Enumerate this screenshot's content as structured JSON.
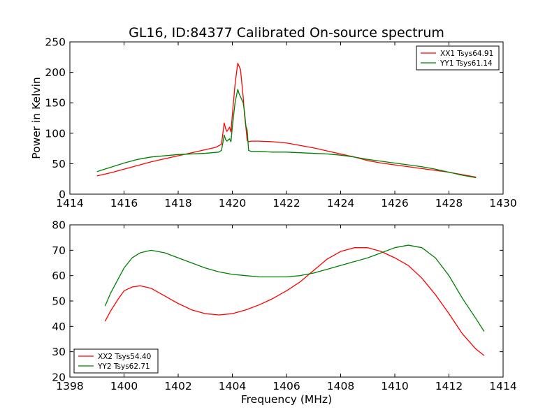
{
  "figure": {
    "title": "GL16, ID:84377 Calibrated On-source spectrum",
    "background": "#ffffff"
  },
  "chart_data": [
    {
      "type": "line",
      "title": "GL16, ID:84377 Calibrated On-source spectrum",
      "xlabel": "",
      "ylabel": "Power in Kelvin",
      "xlim": [
        1414,
        1430
      ],
      "ylim": [
        0,
        250
      ],
      "xticks": [
        "1414",
        "1416",
        "1418",
        "1420",
        "1422",
        "1424",
        "1426",
        "1428",
        "1430"
      ],
      "yticks": [
        "0",
        "50",
        "100",
        "150",
        "200",
        "250"
      ],
      "legend_position": "top-right",
      "grid": false,
      "series": [
        {
          "name": "XX1 Tsys64.91",
          "color": "#ff0000",
          "x": [
            1415.0,
            1415.5,
            1416.0,
            1416.5,
            1417.0,
            1417.5,
            1418.0,
            1418.5,
            1419.0,
            1419.4,
            1419.6,
            1419.7,
            1419.75,
            1419.8,
            1419.9,
            1419.95,
            1420.0,
            1420.1,
            1420.2,
            1420.25,
            1420.3,
            1420.4,
            1420.45,
            1420.5,
            1420.55,
            1420.6,
            1420.7,
            1421.0,
            1421.5,
            1422.0,
            1422.5,
            1423.0,
            1423.5,
            1424.0,
            1424.5,
            1425.0,
            1425.5,
            1426.0,
            1426.5,
            1427.0,
            1427.5,
            1428.0,
            1428.5,
            1429.0
          ],
          "y": [
            30,
            35,
            41,
            47,
            53,
            58,
            63,
            68,
            73,
            77,
            82,
            117,
            108,
            103,
            110,
            102,
            130,
            180,
            215,
            210,
            205,
            160,
            130,
            110,
            88,
            86,
            87,
            87,
            86,
            84,
            80,
            76,
            71,
            66,
            61,
            55,
            51,
            48,
            45,
            42,
            39,
            36,
            32,
            28
          ]
        },
        {
          "name": "YY1 Tsys61.14",
          "color": "#008000",
          "x": [
            1415.0,
            1415.5,
            1416.0,
            1416.5,
            1417.0,
            1417.5,
            1418.0,
            1418.5,
            1419.0,
            1419.5,
            1419.6,
            1419.7,
            1419.75,
            1419.8,
            1419.9,
            1419.95,
            1420.0,
            1420.1,
            1420.2,
            1420.25,
            1420.3,
            1420.4,
            1420.45,
            1420.5,
            1420.55,
            1420.6,
            1420.7,
            1421.0,
            1421.5,
            1422.0,
            1422.5,
            1423.0,
            1423.5,
            1424.0,
            1424.5,
            1425.0,
            1425.5,
            1426.0,
            1426.5,
            1427.0,
            1427.5,
            1428.0,
            1428.5,
            1429.0
          ],
          "y": [
            37,
            44,
            51,
            57,
            61,
            63,
            65,
            66,
            67,
            69,
            72,
            97,
            90,
            87,
            91,
            86,
            110,
            150,
            172,
            165,
            160,
            150,
            135,
            112,
            105,
            72,
            70,
            70,
            69,
            69,
            68,
            67,
            66,
            64,
            61,
            57,
            54,
            51,
            48,
            45,
            41,
            36,
            31,
            27
          ]
        }
      ]
    },
    {
      "type": "line",
      "title": "",
      "xlabel": "Frequency (MHz)",
      "ylabel": "",
      "xlim": [
        1398,
        1414
      ],
      "ylim": [
        20,
        80
      ],
      "xticks": [
        "1398",
        "1400",
        "1402",
        "1404",
        "1406",
        "1408",
        "1410",
        "1412",
        "1414"
      ],
      "yticks": [
        "20",
        "30",
        "40",
        "50",
        "60",
        "70",
        "80"
      ],
      "legend_position": "bottom-left",
      "grid": false,
      "series": [
        {
          "name": "XX2 Tsys54.40",
          "color": "#ff0000",
          "x": [
            1399.3,
            1399.5,
            1399.8,
            1400.0,
            1400.3,
            1400.6,
            1401.0,
            1401.5,
            1402.0,
            1402.5,
            1403.0,
            1403.5,
            1404.0,
            1404.5,
            1405.0,
            1405.5,
            1406.0,
            1406.5,
            1407.0,
            1407.5,
            1408.0,
            1408.5,
            1409.0,
            1409.5,
            1410.0,
            1410.5,
            1411.0,
            1411.5,
            1412.0,
            1412.5,
            1413.0,
            1413.3
          ],
          "y": [
            42,
            46,
            51,
            54,
            55.5,
            56,
            55,
            52,
            49,
            46.5,
            45,
            44.5,
            45,
            46.5,
            48.5,
            51,
            54,
            57.5,
            62,
            66.5,
            69.5,
            71,
            71,
            69.5,
            67,
            64,
            59,
            52.5,
            45,
            37,
            31,
            28.5
          ]
        },
        {
          "name": "YY2 Tsys62.71",
          "color": "#008000",
          "x": [
            1399.3,
            1399.5,
            1399.8,
            1400.0,
            1400.3,
            1400.6,
            1401.0,
            1401.5,
            1402.0,
            1402.5,
            1403.0,
            1403.5,
            1404.0,
            1404.5,
            1405.0,
            1405.5,
            1406.0,
            1406.5,
            1407.0,
            1407.5,
            1408.0,
            1408.5,
            1409.0,
            1409.5,
            1410.0,
            1410.5,
            1411.0,
            1411.5,
            1412.0,
            1412.5,
            1413.0,
            1413.3
          ],
          "y": [
            48,
            53,
            59,
            63,
            67,
            69,
            70,
            69,
            67,
            65,
            63,
            61.5,
            60.5,
            60,
            59.5,
            59.5,
            59.5,
            60,
            61,
            62.5,
            64,
            65.5,
            67,
            69,
            71,
            72,
            71,
            67,
            60,
            51,
            43,
            38
          ]
        }
      ]
    }
  ]
}
